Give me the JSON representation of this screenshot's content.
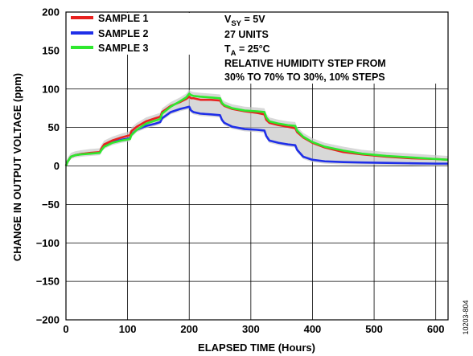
{
  "chart_data": {
    "type": "line",
    "xlabel": "ELAPSED TIME (Hours)",
    "ylabel": "CHANGE IN OUTPUT VOLTAGE (ppm)",
    "xlim": [
      0,
      620
    ],
    "ylim": [
      -200,
      200
    ],
    "x_ticks": [
      "0",
      "100",
      "200",
      "300",
      "400",
      "500",
      "600"
    ],
    "y_ticks": [
      "200",
      "150",
      "100",
      "50",
      "0",
      "−50",
      "−100",
      "−150",
      "−200"
    ],
    "x_tick_values": [
      0,
      100,
      200,
      300,
      400,
      500,
      600
    ],
    "y_tick_values": [
      200,
      150,
      100,
      50,
      0,
      -50,
      -100,
      -150,
      -200
    ],
    "grid": true,
    "legend_position": "top-left",
    "series": [
      {
        "name": "SAMPLE 1",
        "color": "#e8211f",
        "points": [
          [
            0,
            0
          ],
          [
            3,
            6
          ],
          [
            8,
            12
          ],
          [
            15,
            14
          ],
          [
            25,
            15.5
          ],
          [
            40,
            17
          ],
          [
            55,
            18
          ],
          [
            57,
            22
          ],
          [
            62,
            28
          ],
          [
            75,
            33
          ],
          [
            90,
            37
          ],
          [
            104,
            40
          ],
          [
            106,
            45
          ],
          [
            115,
            51
          ],
          [
            130,
            58
          ],
          [
            145,
            62
          ],
          [
            153,
            64
          ],
          [
            156,
            70
          ],
          [
            170,
            78
          ],
          [
            185,
            83
          ],
          [
            195,
            87
          ],
          [
            200,
            90
          ],
          [
            203,
            88
          ],
          [
            207,
            88
          ],
          [
            218,
            86
          ],
          [
            235,
            86
          ],
          [
            250,
            85
          ],
          [
            253,
            81
          ],
          [
            257,
            78
          ],
          [
            270,
            74
          ],
          [
            290,
            71
          ],
          [
            310,
            69
          ],
          [
            322,
            67
          ],
          [
            325,
            60
          ],
          [
            330,
            56
          ],
          [
            345,
            53
          ],
          [
            360,
            51
          ],
          [
            372,
            49
          ],
          [
            375,
            44
          ],
          [
            385,
            37
          ],
          [
            400,
            30
          ],
          [
            420,
            24
          ],
          [
            450,
            18
          ],
          [
            480,
            15
          ],
          [
            520,
            12
          ],
          [
            560,
            10
          ],
          [
            600,
            9
          ],
          [
            620,
            8
          ]
        ]
      },
      {
        "name": "SAMPLE 2",
        "color": "#1f2fe8",
        "points": [
          [
            0,
            0
          ],
          [
            3,
            6
          ],
          [
            8,
            12
          ],
          [
            15,
            14
          ],
          [
            25,
            15.5
          ],
          [
            40,
            16.5
          ],
          [
            55,
            17.5
          ],
          [
            57,
            21
          ],
          [
            62,
            26
          ],
          [
            75,
            31
          ],
          [
            90,
            34
          ],
          [
            104,
            36
          ],
          [
            106,
            41
          ],
          [
            115,
            47
          ],
          [
            130,
            52
          ],
          [
            145,
            55
          ],
          [
            153,
            57
          ],
          [
            156,
            62
          ],
          [
            170,
            70
          ],
          [
            185,
            74
          ],
          [
            195,
            76
          ],
          [
            200,
            77
          ],
          [
            203,
            72
          ],
          [
            207,
            70
          ],
          [
            218,
            68
          ],
          [
            235,
            67
          ],
          [
            250,
            66
          ],
          [
            253,
            60
          ],
          [
            257,
            56
          ],
          [
            270,
            51
          ],
          [
            290,
            48
          ],
          [
            310,
            47
          ],
          [
            322,
            46
          ],
          [
            325,
            39
          ],
          [
            330,
            33
          ],
          [
            345,
            30
          ],
          [
            360,
            28
          ],
          [
            372,
            27
          ],
          [
            375,
            21
          ],
          [
            385,
            12
          ],
          [
            400,
            8
          ],
          [
            420,
            6
          ],
          [
            450,
            5
          ],
          [
            480,
            4.5
          ],
          [
            520,
            4
          ],
          [
            560,
            3.5
          ],
          [
            600,
            3
          ],
          [
            620,
            3
          ]
        ]
      },
      {
        "name": "SAMPLE 3",
        "color": "#2ee82e",
        "points": [
          [
            0,
            0
          ],
          [
            3,
            6
          ],
          [
            8,
            12
          ],
          [
            15,
            14
          ],
          [
            25,
            15
          ],
          [
            40,
            16
          ],
          [
            55,
            17
          ],
          [
            57,
            20
          ],
          [
            62,
            25
          ],
          [
            75,
            30
          ],
          [
            90,
            33
          ],
          [
            104,
            35
          ],
          [
            106,
            40
          ],
          [
            115,
            47
          ],
          [
            130,
            55
          ],
          [
            145,
            59
          ],
          [
            153,
            61
          ],
          [
            156,
            68
          ],
          [
            170,
            77
          ],
          [
            185,
            84
          ],
          [
            195,
            89
          ],
          [
            200,
            94
          ],
          [
            203,
            92
          ],
          [
            207,
            91
          ],
          [
            218,
            90
          ],
          [
            235,
            89
          ],
          [
            250,
            88
          ],
          [
            253,
            82
          ],
          [
            257,
            79
          ],
          [
            270,
            75
          ],
          [
            290,
            72
          ],
          [
            310,
            71
          ],
          [
            322,
            70
          ],
          [
            325,
            63
          ],
          [
            330,
            58
          ],
          [
            345,
            55
          ],
          [
            360,
            53
          ],
          [
            372,
            52
          ],
          [
            375,
            46
          ],
          [
            385,
            38
          ],
          [
            400,
            31
          ],
          [
            420,
            25
          ],
          [
            450,
            20
          ],
          [
            480,
            16
          ],
          [
            520,
            13
          ],
          [
            560,
            11
          ],
          [
            600,
            9
          ],
          [
            620,
            8
          ]
        ]
      }
    ]
  },
  "legend": {
    "items": [
      "SAMPLE 1",
      "SAMPLE 2",
      "SAMPLE 3"
    ]
  },
  "annotation": {
    "vsy_main": "V",
    "vsy_sub": "SY",
    "vsy_rest": " = 5V",
    "units": "27 UNITS",
    "ta_main": "T",
    "ta_sub": "A",
    "ta_rest": " = 25°C",
    "line1": "RELATIVE HUMIDITY STEP FROM",
    "line2": "30% TO 70% TO 30%, 10% STEPS"
  },
  "figure_id": "10203-804",
  "colors": {
    "grid": "#000000",
    "envelope": "#c8c8c8"
  }
}
